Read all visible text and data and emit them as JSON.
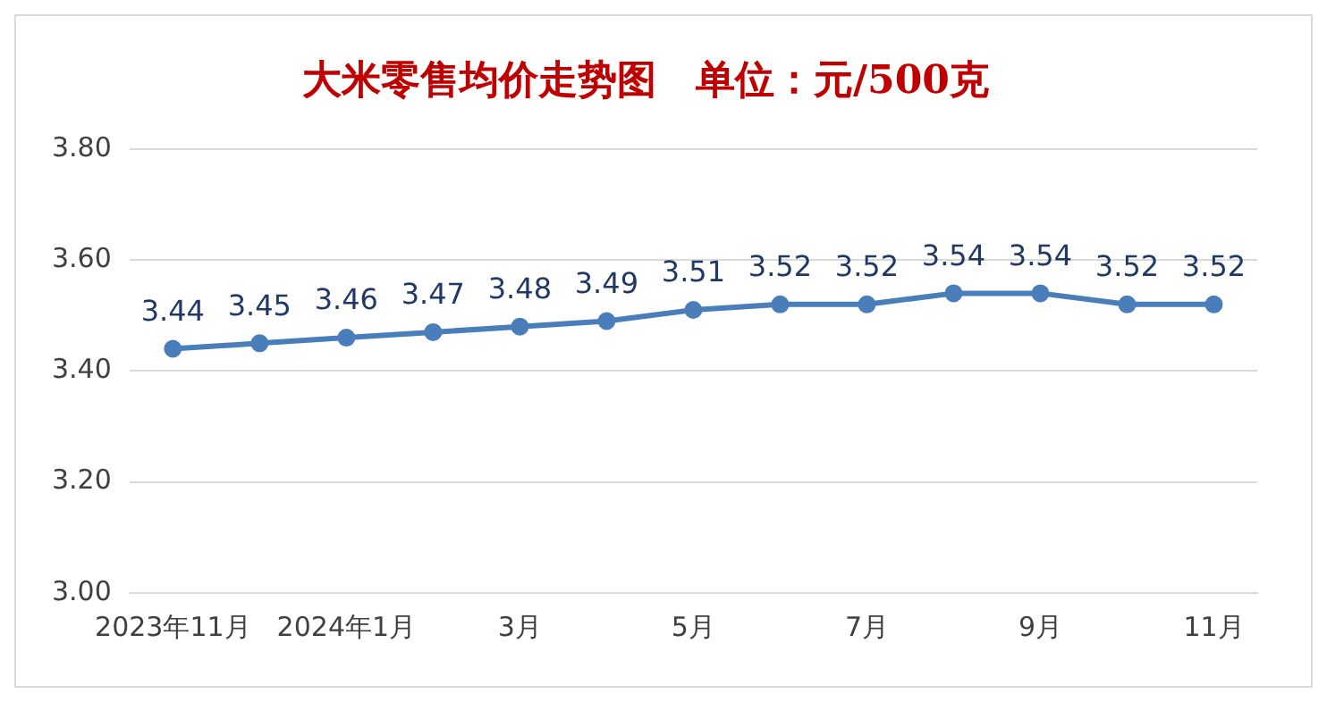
{
  "chart_data": {
    "type": "line",
    "title": "大米零售均价走势图　单位：元/500克",
    "categories": [
      "2023年11月",
      null,
      "2024年1月",
      null,
      "3月",
      null,
      "5月",
      null,
      "7月",
      null,
      "9月",
      null,
      "11月"
    ],
    "series": [
      {
        "color": "#4a7ebb",
        "values": [
          3.44,
          3.45,
          3.46,
          3.47,
          3.48,
          3.49,
          3.51,
          3.52,
          3.52,
          3.54,
          3.54,
          3.52,
          3.52
        ]
      }
    ],
    "ylim": [
      3.0,
      3.8
    ],
    "yticks": [
      "3.00",
      "3.20",
      "3.40",
      "3.60",
      "3.80"
    ],
    "grid": "y",
    "legend": false,
    "marker": "circle",
    "line_style": "solid",
    "data_labels": true
  }
}
